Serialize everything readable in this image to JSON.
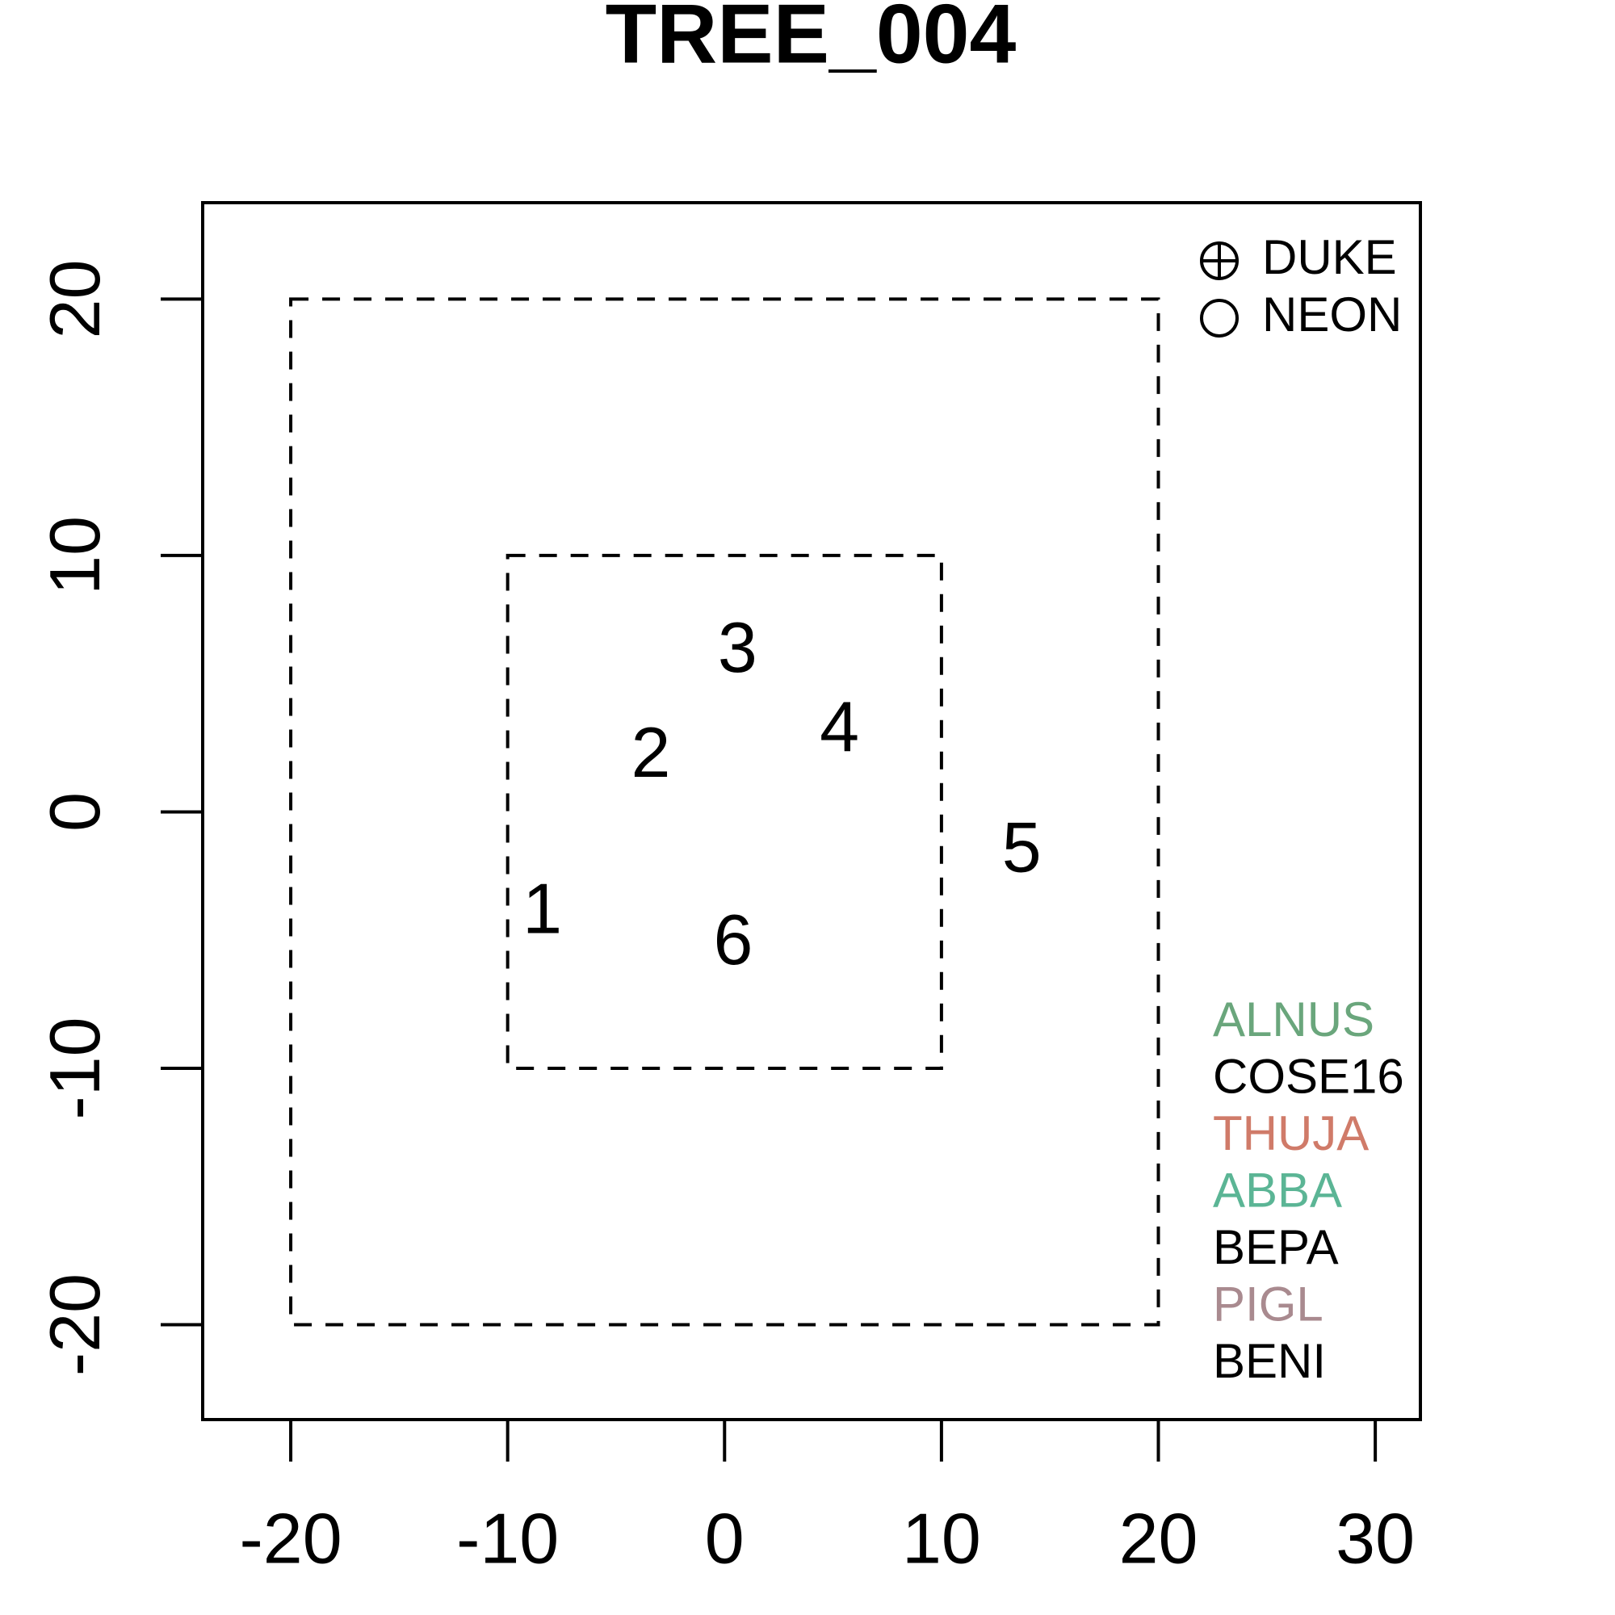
{
  "chart_data": {
    "type": "text_scatter",
    "title": "TREE_004",
    "series": [
      {
        "x": [
          -8.4,
          -3.4,
          0.6,
          5.3,
          13.7,
          0.4
        ],
        "values": [
          -4.0,
          2.1,
          6.2,
          3.1,
          -1.6,
          -5.2
        ],
        "labels": [
          "1",
          "2",
          "3",
          "4",
          "5",
          "6"
        ],
        "color": "#000000"
      }
    ],
    "rectangles": [
      {
        "x": [
          -20,
          20
        ],
        "y": [
          -20,
          20
        ]
      },
      {
        "x": [
          -10,
          10
        ],
        "y": [
          -10,
          10
        ]
      }
    ],
    "xlim": [
      -24.06,
      32.08
    ],
    "ylim": [
      -23.7,
      23.76
    ],
    "xticks": [
      -20,
      -10,
      0,
      10,
      20,
      30
    ],
    "yticks": [
      -20,
      -10,
      0,
      10,
      20
    ],
    "shape_legend": [
      {
        "name": "DUKE",
        "symbol": "circle-plus"
      },
      {
        "name": "NEON",
        "symbol": "circle"
      }
    ],
    "species_legend": [
      {
        "name": "ALNUS",
        "color": "#6aa67c"
      },
      {
        "name": "COSE16",
        "color": "#000000"
      },
      {
        "name": "THUJA",
        "color": "#d07b69"
      },
      {
        "name": "ABBA",
        "color": "#5bb595"
      },
      {
        "name": "BEPA",
        "color": "#000000"
      },
      {
        "name": "PIGL",
        "color": "#a98a8f"
      },
      {
        "name": "BENI",
        "color": "#000000"
      }
    ]
  }
}
